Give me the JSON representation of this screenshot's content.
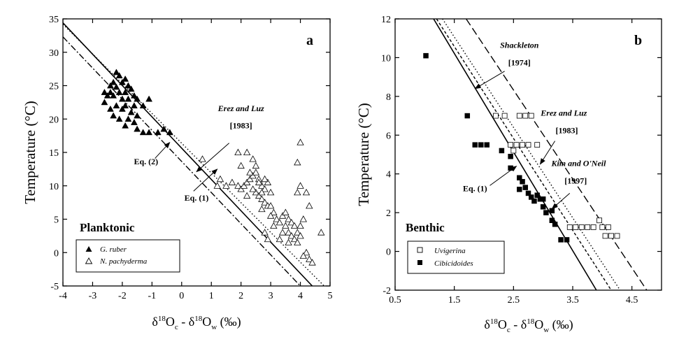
{
  "chart_data": [
    {
      "type": "scatter",
      "panel_label": "a",
      "title": "Planktonic",
      "xlabel": {
        "base": "δ",
        "sup1": "18",
        "mid1": "O",
        "sub1": "c",
        "mid2": " - δ",
        "sup2": "18",
        "mid3": "O",
        "sub2": "w",
        "tail": " (‰)"
      },
      "ylabel": "Temperature (°C)",
      "xlim": [
        -4,
        5
      ],
      "ylim": [
        -5,
        35
      ],
      "xticks": [
        "-4",
        "-3",
        "-2",
        "-1",
        "0",
        "1",
        "2",
        "3",
        "4",
        "5"
      ],
      "yticks": [
        "-5",
        "0",
        "5",
        "10",
        "15",
        "20",
        "25",
        "30",
        "35"
      ],
      "series": [
        {
          "name": "G. ruber",
          "marker": "filled-triangle",
          "points": [
            [
              -2.2,
              27.0
            ],
            [
              -2.1,
              26.5
            ],
            [
              -1.9,
              26.0
            ],
            [
              -2.3,
              25.5
            ],
            [
              -2.0,
              25.5
            ],
            [
              -1.8,
              25.0
            ],
            [
              -2.4,
              25.0
            ],
            [
              -2.2,
              24.8
            ],
            [
              -1.7,
              24.5
            ],
            [
              -2.6,
              24.0
            ],
            [
              -2.4,
              24.0
            ],
            [
              -2.1,
              24.0
            ],
            [
              -1.9,
              24.0
            ],
            [
              -1.6,
              23.5
            ],
            [
              -2.5,
              23.5
            ],
            [
              -2.3,
              23.5
            ],
            [
              -2.0,
              23.0
            ],
            [
              -1.8,
              23.0
            ],
            [
              -1.5,
              23.0
            ],
            [
              -1.1,
              23.0
            ],
            [
              -2.6,
              22.5
            ],
            [
              -2.2,
              22.0
            ],
            [
              -1.9,
              22.0
            ],
            [
              -1.6,
              22.0
            ],
            [
              -1.3,
              22.0
            ],
            [
              -2.4,
              21.5
            ],
            [
              -2.0,
              21.5
            ],
            [
              -1.7,
              21.0
            ],
            [
              -2.3,
              20.5
            ],
            [
              -1.5,
              20.5
            ],
            [
              -2.1,
              20.0
            ],
            [
              -1.8,
              20.0
            ],
            [
              -1.6,
              19.5
            ],
            [
              -1.9,
              19.0
            ],
            [
              -1.5,
              18.5
            ],
            [
              -1.3,
              18.0
            ],
            [
              -1.1,
              18.0
            ],
            [
              -0.6,
              18.5
            ],
            [
              -0.8,
              18.0
            ],
            [
              -0.4,
              18.0
            ]
          ]
        },
        {
          "name": "N. pachyderma",
          "marker": "open-triangle",
          "points": [
            [
              0.7,
              14.0
            ],
            [
              1.3,
              11.0
            ],
            [
              1.2,
              10.0
            ],
            [
              1.5,
              10.0
            ],
            [
              1.7,
              10.5
            ],
            [
              1.9,
              10.0
            ],
            [
              2.0,
              9.5
            ],
            [
              2.1,
              10.0
            ],
            [
              2.2,
              10.5
            ],
            [
              2.3,
              11.0
            ],
            [
              2.4,
              11.5
            ],
            [
              2.5,
              12.0
            ],
            [
              2.6,
              11.0
            ],
            [
              2.7,
              10.0
            ],
            [
              2.8,
              9.5
            ],
            [
              2.5,
              9.0
            ],
            [
              2.6,
              8.5
            ],
            [
              2.7,
              8.0
            ],
            [
              2.8,
              7.5
            ],
            [
              2.9,
              7.0
            ],
            [
              2.2,
              8.5
            ],
            [
              2.4,
              9.5
            ],
            [
              2.6,
              10.5
            ],
            [
              2.7,
              9.0
            ],
            [
              2.9,
              10.5
            ],
            [
              3.0,
              9.0
            ],
            [
              2.8,
              11.0
            ],
            [
              2.3,
              12.0
            ],
            [
              2.5,
              13.0
            ],
            [
              1.9,
              15.0
            ],
            [
              2.2,
              15.0
            ],
            [
              2.4,
              14.0
            ],
            [
              2.0,
              13.0
            ],
            [
              3.0,
              7.0
            ],
            [
              3.1,
              6.0
            ],
            [
              3.2,
              5.0
            ],
            [
              3.3,
              4.5
            ],
            [
              3.4,
              5.5
            ],
            [
              3.5,
              6.0
            ],
            [
              3.6,
              5.0
            ],
            [
              3.7,
              4.5
            ],
            [
              3.8,
              4.0
            ],
            [
              3.6,
              3.0
            ],
            [
              3.7,
              2.5
            ],
            [
              3.9,
              3.0
            ],
            [
              4.0,
              4.0
            ],
            [
              4.1,
              5.0
            ],
            [
              3.5,
              4.0
            ],
            [
              3.4,
              3.0
            ],
            [
              3.8,
              2.0
            ],
            [
              3.9,
              1.5
            ],
            [
              4.0,
              2.5
            ],
            [
              3.3,
              2.0
            ],
            [
              3.6,
              1.5
            ],
            [
              4.2,
              0.0
            ],
            [
              4.3,
              -1.0
            ],
            [
              4.4,
              -1.5
            ],
            [
              4.1,
              -0.5
            ],
            [
              3.9,
              9.0
            ],
            [
              4.0,
              10.0
            ],
            [
              3.9,
              13.5
            ],
            [
              4.0,
              16.5
            ],
            [
              4.7,
              3.0
            ],
            [
              4.3,
              7.0
            ],
            [
              4.2,
              9.0
            ],
            [
              2.7,
              6.5
            ],
            [
              3.0,
              5.5
            ],
            [
              3.1,
              4.0
            ],
            [
              2.8,
              3.0
            ],
            [
              2.9,
              2.0
            ]
          ]
        }
      ],
      "lines": [
        {
          "name": "Erez and Luz [1983]",
          "style": "dotted",
          "p1": [
            -4,
            34.2
          ],
          "p2": [
            4.8,
            -5
          ]
        },
        {
          "name": "Eq. (1)",
          "style": "solid",
          "p1": [
            -4,
            34.4
          ],
          "p2": [
            4.4,
            -5
          ]
        },
        {
          "name": "Eq. (2)",
          "style": "dash-dot",
          "p1": [
            -4,
            32.3
          ],
          "p2": [
            4.0,
            -5
          ]
        }
      ],
      "annotations": [
        {
          "id": "erez-luz",
          "text": "Erez and Luz",
          "italic": true,
          "pos": [
            2.0,
            21.2
          ]
        },
        {
          "id": "erez-luz-year",
          "text": "[1983]",
          "italic": false,
          "pos": [
            2.0,
            18.6
          ]
        },
        {
          "id": "eq2",
          "text": "Eq. (2)",
          "italic": false,
          "pos": [
            -1.2,
            13.2
          ]
        },
        {
          "id": "eq1",
          "text": "Eq. (1)",
          "italic": false,
          "pos": [
            0.5,
            7.8
          ]
        }
      ],
      "arrows": [
        {
          "id": "arrow-erez-luz",
          "from": [
            1.6,
            16.4
          ],
          "to": [
            0.5,
            12.1
          ]
        },
        {
          "id": "arrow-eq2",
          "from": [
            -0.9,
            14.1
          ],
          "to": [
            -0.4,
            16.5
          ]
        },
        {
          "id": "arrow-eq1",
          "from": [
            0.4,
            9.2
          ],
          "to": [
            1.2,
            12.5
          ]
        }
      ],
      "legend": {
        "position": "bottom-left",
        "items": [
          "G. ruber",
          "N. pachyderma"
        ]
      }
    },
    {
      "type": "scatter",
      "panel_label": "b",
      "title": "Benthic",
      "xlabel": {
        "base": "δ",
        "sup1": "18",
        "mid1": "O",
        "sub1": "c",
        "mid2": " - δ",
        "sup2": "18",
        "mid3": "O",
        "sub2": "w",
        "tail": " (‰)"
      },
      "ylabel": "Temperature (°C)",
      "xlim": [
        0.5,
        5
      ],
      "ylim": [
        -2,
        12
      ],
      "xticks": [
        "0.5",
        "1.5",
        "2.5",
        "3.5",
        "4.5"
      ],
      "xtick_values": [
        0.5,
        1.5,
        2.5,
        3.5,
        4.5
      ],
      "yticks": [
        "-2",
        "0",
        "2",
        "4",
        "6",
        "8",
        "10",
        "12"
      ],
      "series": [
        {
          "name": "Uvigerina",
          "marker": "open-square",
          "points": [
            [
              2.2,
              7.0
            ],
            [
              2.35,
              7.0
            ],
            [
              2.6,
              7.0
            ],
            [
              2.7,
              7.0
            ],
            [
              2.8,
              7.0
            ],
            [
              2.45,
              5.5
            ],
            [
              2.55,
              5.5
            ],
            [
              2.65,
              5.5
            ],
            [
              2.75,
              5.5
            ],
            [
              2.9,
              5.5
            ],
            [
              2.5,
              5.2
            ],
            [
              3.45,
              1.25
            ],
            [
              3.55,
              1.25
            ],
            [
              3.65,
              1.25
            ],
            [
              3.75,
              1.25
            ],
            [
              3.85,
              1.25
            ],
            [
              4.0,
              1.25
            ],
            [
              4.1,
              1.25
            ],
            [
              3.95,
              1.6
            ],
            [
              4.05,
              0.8
            ],
            [
              4.15,
              0.8
            ],
            [
              4.25,
              0.8
            ]
          ]
        },
        {
          "name": "Cibicidoides",
          "marker": "filled-square",
          "points": [
            [
              1.02,
              10.1
            ],
            [
              1.72,
              7.0
            ],
            [
              1.85,
              5.5
            ],
            [
              1.95,
              5.5
            ],
            [
              2.05,
              5.5
            ],
            [
              2.3,
              5.2
            ],
            [
              2.45,
              4.9
            ],
            [
              2.45,
              4.3
            ],
            [
              2.6,
              3.8
            ],
            [
              2.65,
              3.6
            ],
            [
              2.6,
              3.2
            ],
            [
              2.7,
              3.3
            ],
            [
              2.75,
              3.0
            ],
            [
              2.8,
              2.8
            ],
            [
              2.85,
              2.6
            ],
            [
              2.9,
              2.9
            ],
            [
              2.95,
              2.7
            ],
            [
              3.0,
              2.7
            ],
            [
              3.0,
              2.3
            ],
            [
              3.05,
              2.0
            ],
            [
              3.15,
              2.1
            ],
            [
              3.15,
              1.6
            ],
            [
              3.2,
              1.4
            ],
            [
              3.3,
              0.6
            ],
            [
              3.4,
              0.6
            ]
          ]
        }
      ],
      "lines": [
        {
          "name": "Eq. (1)",
          "style": "solid",
          "p1": [
            1.15,
            12
          ],
          "p2": [
            3.9,
            -2
          ]
        },
        {
          "name": "Kim and O'Neil [1997]",
          "style": "short-dash",
          "p1": [
            1.2,
            12
          ],
          "p2": [
            4.15,
            -2
          ]
        },
        {
          "name": "Erez and Luz [1983]",
          "style": "dotted",
          "p1": [
            1.3,
            12
          ],
          "p2": [
            4.3,
            -2
          ]
        },
        {
          "name": "Shackleton [1974]",
          "style": "long-dash",
          "p1": [
            1.7,
            12
          ],
          "p2": [
            4.75,
            -2
          ]
        }
      ],
      "annotations": [
        {
          "id": "shackleton",
          "text": "Shackleton",
          "italic": true,
          "pos": [
            2.6,
            10.5
          ]
        },
        {
          "id": "shackleton-year",
          "text": "[1974]",
          "italic": false,
          "pos": [
            2.6,
            9.6
          ]
        },
        {
          "id": "erez-luz",
          "text": "Erez and Luz",
          "italic": true,
          "pos": [
            3.35,
            7.0
          ]
        },
        {
          "id": "erez-luz-year",
          "text": "[1983]",
          "italic": false,
          "pos": [
            3.4,
            6.1
          ]
        },
        {
          "id": "kim-oneil",
          "text": "Kim and O'Neil",
          "italic": true,
          "pos": [
            3.6,
            4.4
          ]
        },
        {
          "id": "kim-oneil-year",
          "text": "[1997]",
          "italic": false,
          "pos": [
            3.55,
            3.5
          ]
        },
        {
          "id": "eq1",
          "text": "Eq. (1)",
          "italic": false,
          "pos": [
            1.85,
            3.1
          ]
        }
      ],
      "arrows": [
        {
          "id": "arrow-shackleton",
          "from": [
            2.35,
            9.3
          ],
          "to": [
            1.85,
            8.4
          ]
        },
        {
          "id": "arrow-erez-luz",
          "from": [
            3.2,
            5.7
          ],
          "to": [
            2.95,
            4.5
          ]
        },
        {
          "id": "arrow-kim-oneil",
          "from": [
            3.45,
            3.0
          ],
          "to": [
            3.15,
            2.2
          ]
        },
        {
          "id": "arrow-eq1",
          "from": [
            2.1,
            3.4
          ],
          "to": [
            2.55,
            4.4
          ]
        }
      ],
      "legend": {
        "position": "bottom-left",
        "items": [
          "Uvigerina",
          "Cibicidoides"
        ]
      }
    }
  ]
}
